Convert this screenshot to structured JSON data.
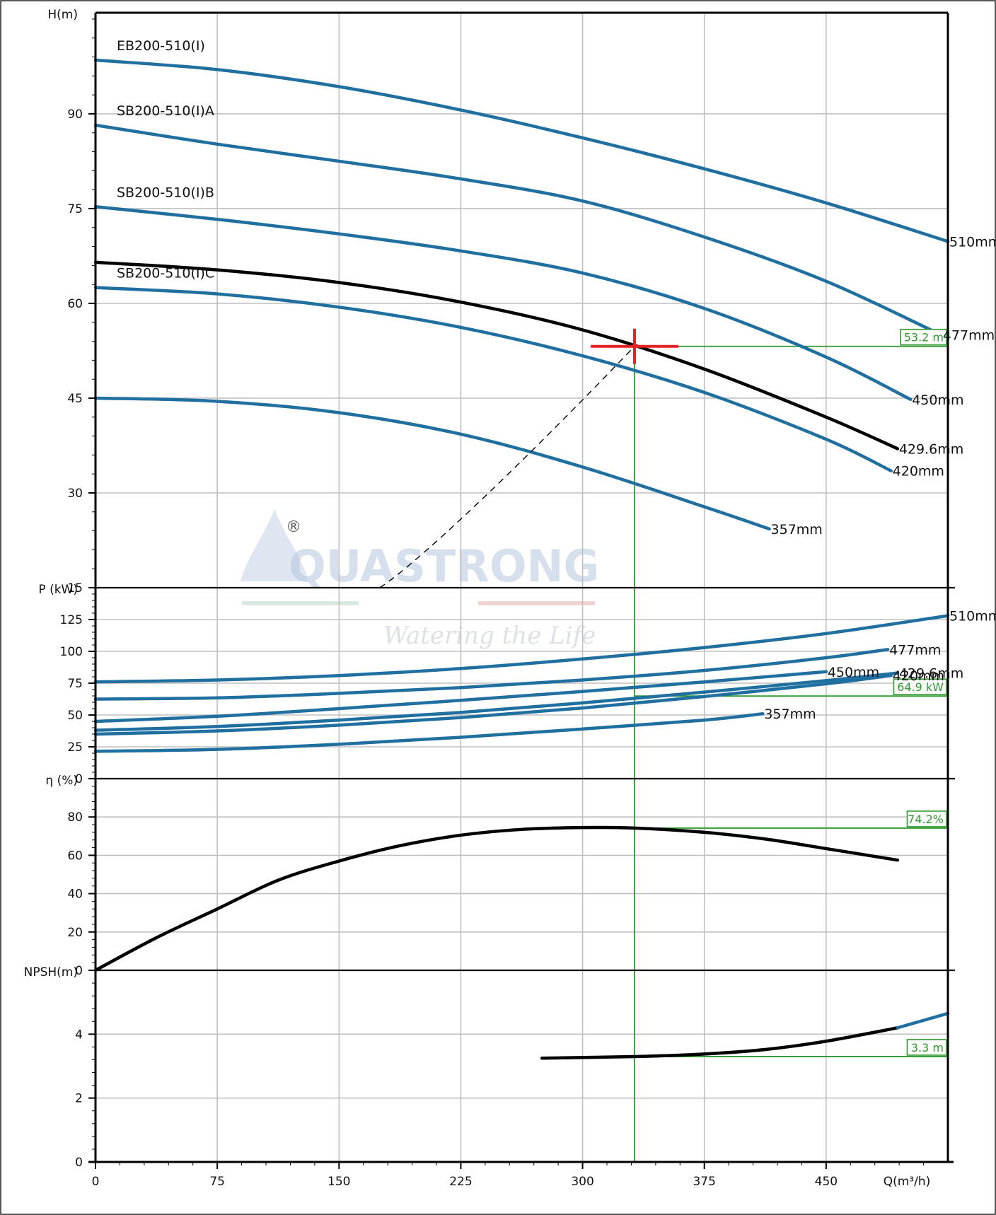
{
  "chart_data": {
    "type": "line",
    "watermark": {
      "brand": "QUASTRONG",
      "tagline": "Watering the Life",
      "registered": "®"
    },
    "colors": {
      "blue": "#1f6fa1",
      "selected": "#000000",
      "operating": "#2e9a2e",
      "marker": "#e32222",
      "grid": "#c0c0c0"
    },
    "xaxis": {
      "label": "Q(m³/h)",
      "min": 0,
      "max": 525,
      "ticks": [
        0,
        75,
        150,
        225,
        300,
        375,
        450
      ],
      "grid_step": 75
    },
    "operating_point": {
      "q": 332,
      "h": 53.2,
      "p": 64.9,
      "eff": 74.2,
      "npsh": 3.3
    },
    "model_names": [
      "EB200-510(I)",
      "SB200-510(I)A",
      "SB200-510(I)B",
      "SB200-510(I)C"
    ],
    "panels": [
      {
        "id": "head",
        "ylabel": "H(m)",
        "ymin": 15,
        "ymax": 106,
        "ticks": [
          15,
          30,
          45,
          60,
          75,
          90
        ],
        "value_label": "53.2 m",
        "series": [
          {
            "name": "510mm",
            "x": [
              0,
              75,
              150,
              225,
              300,
              375,
              450,
              525
            ],
            "y": [
              98.5,
              97.0,
              94.3,
              90.6,
              86.2,
              81.3,
              75.9,
              69.8
            ]
          },
          {
            "name": "477mm",
            "x": [
              0,
              75,
              150,
              225,
              300,
              375,
              450,
              521
            ],
            "y": [
              88.2,
              85.2,
              82.5,
              79.7,
              76.2,
              70.5,
              63.5,
              55.0
            ]
          },
          {
            "name": "450mm",
            "x": [
              0,
              75,
              150,
              225,
              300,
              375,
              450,
              502
            ],
            "y": [
              75.3,
              73.3,
              71.0,
              68.3,
              64.8,
              59.2,
              51.5,
              44.8
            ]
          },
          {
            "name": "429.6mm",
            "x": [
              0,
              75,
              150,
              225,
              300,
              375,
              450,
              494
            ],
            "y": [
              66.5,
              65.3,
              63.3,
              60.2,
              55.8,
              49.6,
              42.0,
              37.0
            ],
            "selected": true
          },
          {
            "name": "420mm",
            "x": [
              0,
              75,
              150,
              225,
              300,
              375,
              450,
              490
            ],
            "y": [
              62.5,
              61.5,
              59.4,
              56.2,
              51.7,
              45.9,
              38.5,
              33.5
            ]
          },
          {
            "name": "357mm",
            "x": [
              0,
              75,
              150,
              225,
              300,
              375,
              415
            ],
            "y": [
              45.0,
              44.5,
              42.7,
              39.3,
              34.1,
              27.8,
              24.3
            ]
          }
        ]
      },
      {
        "id": "power",
        "ylabel": "P (kW)",
        "ymin": 0,
        "ymax": 150,
        "ticks": [
          0,
          25,
          50,
          75,
          100,
          125
        ],
        "value_label": "64.9 kW",
        "series": [
          {
            "name": "510mm",
            "x": [
              0,
              75,
              150,
              225,
              300,
              375,
              450,
              525
            ],
            "y": [
              76,
              77.5,
              81,
              86.5,
              94,
              103,
              114,
              128
            ]
          },
          {
            "name": "477mm",
            "x": [
              0,
              75,
              150,
              225,
              300,
              375,
              450,
              488
            ],
            "y": [
              62.5,
              63.5,
              67,
              71.5,
              77.5,
              85,
              95,
              101.5
            ]
          },
          {
            "name": "450mm",
            "x": [
              0,
              75,
              150,
              225,
              300,
              375,
              450
            ],
            "y": [
              45,
              49,
              55,
              61.5,
              68.5,
              76,
              84
            ]
          },
          {
            "name": "429.6mm",
            "x": [
              0,
              75,
              150,
              225,
              300,
              375,
              450,
              494
            ],
            "y": [
              38,
              41,
              46,
              52,
              59.5,
              68,
              77,
              83
            ]
          },
          {
            "name": "420mm",
            "x": [
              0,
              75,
              150,
              225,
              300,
              375,
              450,
              490
            ],
            "y": [
              35,
              37.5,
              42,
              48,
              55.5,
              64.5,
              74.5,
              81
            ]
          },
          {
            "name": "357mm",
            "x": [
              0,
              75,
              150,
              225,
              300,
              375,
              411
            ],
            "y": [
              21.5,
              23,
              27,
              32.5,
              39,
              46,
              51
            ]
          }
        ]
      },
      {
        "id": "efficiency",
        "ylabel": "η (%)",
        "ymin": 0,
        "ymax": 100,
        "ticks": [
          0,
          20,
          40,
          60,
          80
        ],
        "value_label": "74.2%",
        "series": [
          {
            "name": "",
            "x": [
              0,
              37.5,
              75,
              112.5,
              150,
              187.5,
              225,
              262.5,
              300,
              332,
              375,
              412.5,
              450,
              494
            ],
            "y": [
              0,
              17,
              32,
              47,
              57,
              65,
              70.5,
              73.5,
              74.5,
              74.2,
              72,
              68.5,
              63.5,
              57.5
            ],
            "selected": true
          }
        ]
      },
      {
        "id": "npsh",
        "ylabel": "NPSH(m)",
        "ymin": 0,
        "ymax": 6,
        "ticks": [
          0,
          2,
          4
        ],
        "value_label": "3.3 m",
        "series": [
          {
            "name": "",
            "x": [
              275,
              332,
              375,
              412.5,
              450,
              494
            ],
            "y": [
              3.25,
              3.3,
              3.38,
              3.52,
              3.78,
              4.2
            ],
            "selected": true
          },
          {
            "name": "",
            "x": [
              494,
              525
            ],
            "y": [
              4.2,
              4.65
            ]
          }
        ]
      }
    ]
  }
}
